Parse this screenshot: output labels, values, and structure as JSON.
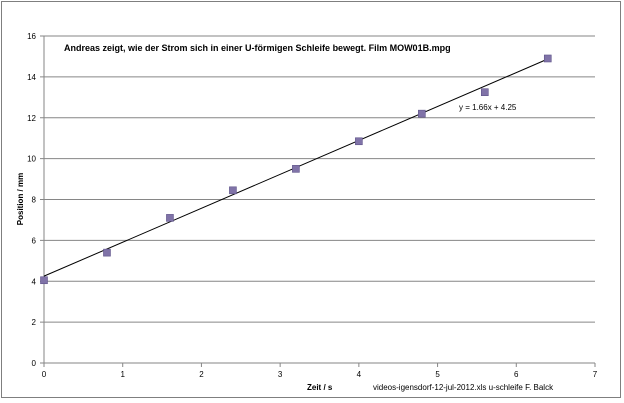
{
  "chart_data": {
    "type": "scatter",
    "title": "Andreas zeigt, wie der Strom sich in einer U-förmigen Schleife bewegt. Film MOW01B.mpg",
    "xlabel": "Zeit / s",
    "ylabel": "Position / mm",
    "xlim": [
      0,
      7
    ],
    "ylim": [
      0,
      16
    ],
    "x_ticks": [
      0,
      1,
      2,
      3,
      4,
      5,
      6,
      7
    ],
    "y_ticks": [
      0,
      2,
      4,
      6,
      8,
      10,
      12,
      14,
      16
    ],
    "grid": "horizontal",
    "legend": "none",
    "series": [
      {
        "values": [
          {
            "x": 0,
            "y": 4.05
          },
          {
            "x": 0.8,
            "y": 5.4
          },
          {
            "x": 1.6,
            "y": 7.1
          },
          {
            "x": 2.4,
            "y": 8.45
          },
          {
            "x": 3.2,
            "y": 9.5
          },
          {
            "x": 4.0,
            "y": 10.85
          },
          {
            "x": 4.8,
            "y": 12.2
          },
          {
            "x": 5.6,
            "y": 13.25
          },
          {
            "x": 6.4,
            "y": 14.9
          }
        ],
        "marker": "square",
        "color": "#8073a8"
      }
    ],
    "trendline": {
      "type": "linear",
      "slope": 1.66,
      "intercept": 4.25,
      "x_range": [
        0,
        6.4
      ],
      "equation_label": "y = 1.66x + 4.25",
      "color": "#000000"
    },
    "annotation": "videos-igensdorf-12-jul-2012.xls u-schleife F. Balck"
  }
}
